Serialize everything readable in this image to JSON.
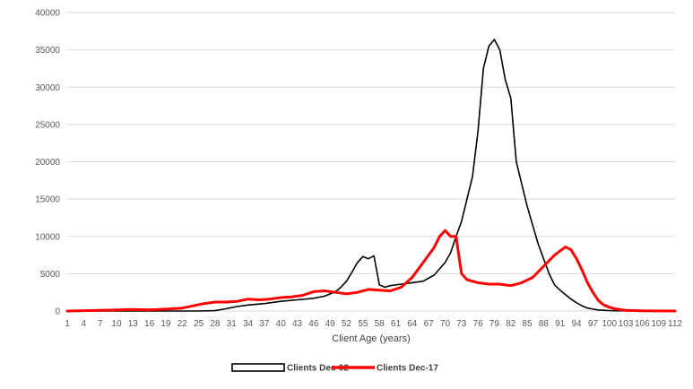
{
  "chart_data": {
    "type": "line",
    "title": "",
    "xlabel": "Client Age (years)",
    "ylabel": "",
    "ylim": [
      0,
      40000
    ],
    "yticks": [
      0,
      5000,
      10000,
      15000,
      20000,
      25000,
      30000,
      35000,
      40000
    ],
    "xlim": [
      1,
      112
    ],
    "xticks": [
      1,
      4,
      7,
      10,
      13,
      16,
      19,
      22,
      25,
      28,
      31,
      34,
      37,
      40,
      43,
      46,
      49,
      52,
      55,
      58,
      61,
      64,
      67,
      70,
      73,
      76,
      79,
      82,
      85,
      88,
      91,
      94,
      97,
      100,
      103,
      106,
      109,
      112
    ],
    "grid": "horizontal",
    "legend_position": "bottom",
    "series": [
      {
        "name": "Clients Dec-02",
        "color": "#000000",
        "points": [
          [
            1,
            0
          ],
          [
            10,
            0
          ],
          [
            20,
            0
          ],
          [
            25,
            0
          ],
          [
            28,
            50
          ],
          [
            30,
            300
          ],
          [
            32,
            600
          ],
          [
            34,
            800
          ],
          [
            37,
            1000
          ],
          [
            40,
            1300
          ],
          [
            43,
            1500
          ],
          [
            46,
            1700
          ],
          [
            48,
            2000
          ],
          [
            50,
            2600
          ],
          [
            51,
            3200
          ],
          [
            52,
            4000
          ],
          [
            53,
            5200
          ],
          [
            54,
            6500
          ],
          [
            55,
            7300
          ],
          [
            56,
            7000
          ],
          [
            57,
            7400
          ],
          [
            58,
            3500
          ],
          [
            59,
            3200
          ],
          [
            60,
            3400
          ],
          [
            62,
            3600
          ],
          [
            64,
            3800
          ],
          [
            66,
            4000
          ],
          [
            68,
            4800
          ],
          [
            70,
            6500
          ],
          [
            71,
            7800
          ],
          [
            72,
            10000
          ],
          [
            73,
            12000
          ],
          [
            74,
            15000
          ],
          [
            75,
            18000
          ],
          [
            76,
            24000
          ],
          [
            77,
            32500
          ],
          [
            78,
            35500
          ],
          [
            79,
            36400
          ],
          [
            80,
            35000
          ],
          [
            81,
            31000
          ],
          [
            82,
            28500
          ],
          [
            83,
            20000
          ],
          [
            84,
            17000
          ],
          [
            85,
            14000
          ],
          [
            86,
            11500
          ],
          [
            87,
            9000
          ],
          [
            88,
            7000
          ],
          [
            89,
            5000
          ],
          [
            90,
            3500
          ],
          [
            91,
            2800
          ],
          [
            92,
            2200
          ],
          [
            93,
            1600
          ],
          [
            94,
            1100
          ],
          [
            95,
            700
          ],
          [
            96,
            400
          ],
          [
            97,
            250
          ],
          [
            98,
            150
          ],
          [
            100,
            50
          ],
          [
            103,
            20
          ],
          [
            106,
            0
          ],
          [
            112,
            0
          ]
        ]
      },
      {
        "name": "Clients Dec-17",
        "color": "#ff0000",
        "points": [
          [
            1,
            0
          ],
          [
            4,
            50
          ],
          [
            7,
            100
          ],
          [
            10,
            150
          ],
          [
            13,
            200
          ],
          [
            16,
            150
          ],
          [
            19,
            250
          ],
          [
            22,
            400
          ],
          [
            24,
            700
          ],
          [
            26,
            1000
          ],
          [
            28,
            1200
          ],
          [
            30,
            1200
          ],
          [
            32,
            1300
          ],
          [
            34,
            1600
          ],
          [
            36,
            1500
          ],
          [
            38,
            1600
          ],
          [
            40,
            1800
          ],
          [
            42,
            1900
          ],
          [
            44,
            2100
          ],
          [
            46,
            2600
          ],
          [
            48,
            2700
          ],
          [
            50,
            2500
          ],
          [
            52,
            2300
          ],
          [
            54,
            2500
          ],
          [
            56,
            2900
          ],
          [
            58,
            2800
          ],
          [
            60,
            2700
          ],
          [
            62,
            3200
          ],
          [
            64,
            4500
          ],
          [
            66,
            6500
          ],
          [
            68,
            8500
          ],
          [
            69,
            10000
          ],
          [
            70,
            10800
          ],
          [
            71,
            10000
          ],
          [
            72,
            10000
          ],
          [
            73,
            5000
          ],
          [
            74,
            4200
          ],
          [
            76,
            3800
          ],
          [
            78,
            3600
          ],
          [
            80,
            3600
          ],
          [
            82,
            3400
          ],
          [
            84,
            3800
          ],
          [
            86,
            4500
          ],
          [
            88,
            6000
          ],
          [
            90,
            7500
          ],
          [
            92,
            8600
          ],
          [
            93,
            8200
          ],
          [
            94,
            7000
          ],
          [
            95,
            5500
          ],
          [
            96,
            3800
          ],
          [
            97,
            2500
          ],
          [
            98,
            1400
          ],
          [
            99,
            800
          ],
          [
            100,
            500
          ],
          [
            101,
            300
          ],
          [
            103,
            100
          ],
          [
            106,
            30
          ],
          [
            112,
            0
          ]
        ]
      }
    ]
  }
}
